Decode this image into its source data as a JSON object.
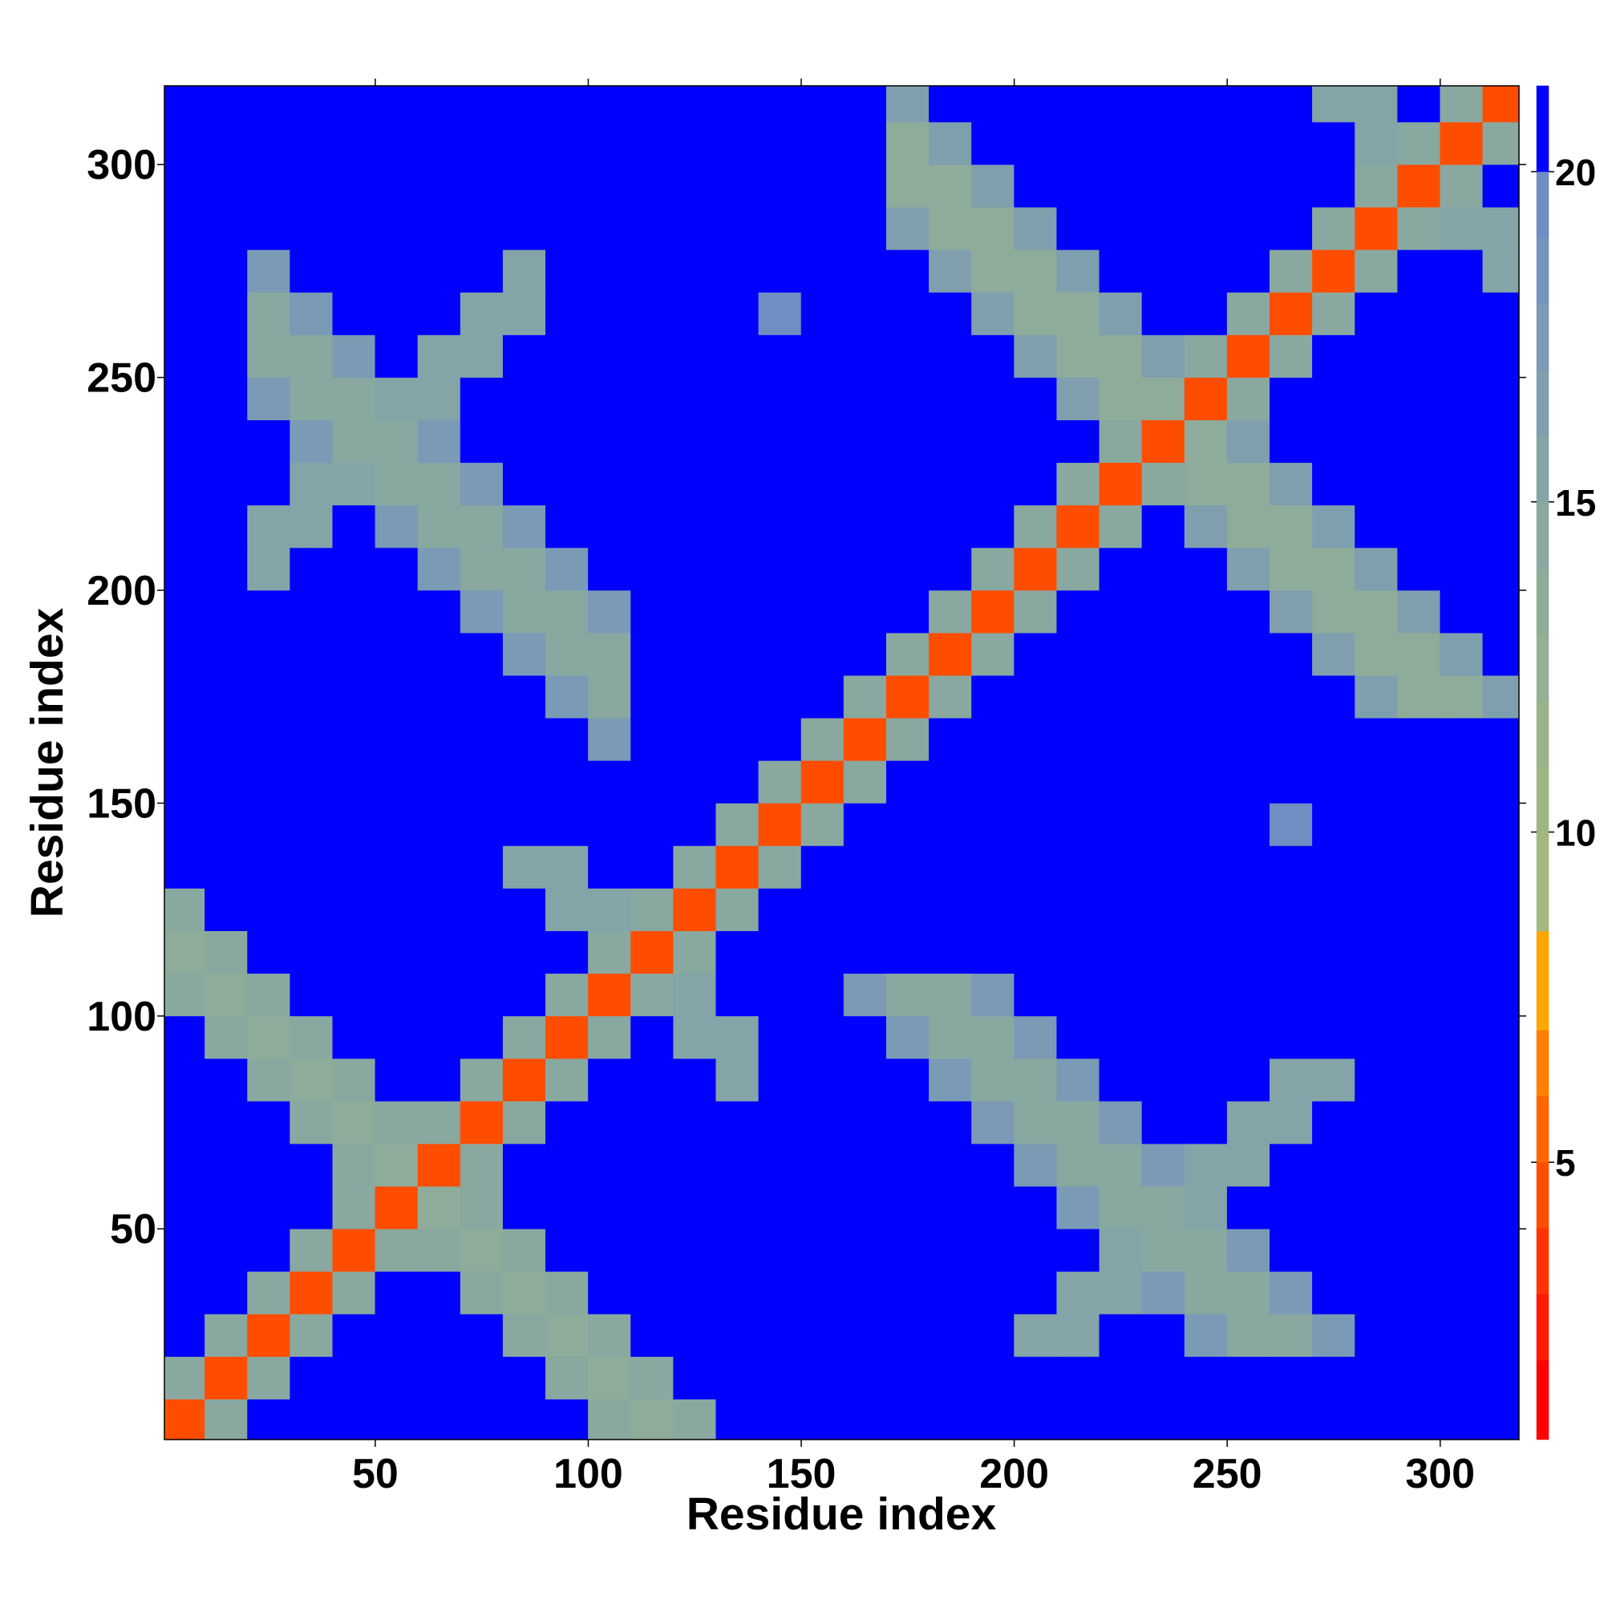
{
  "chart_data": {
    "type": "heatmap",
    "xlabel": "Residue index",
    "ylabel": "Residue index",
    "xlim": [
      0.5,
      318.5
    ],
    "ylim": [
      0.5,
      318.5
    ],
    "xticks": [
      50,
      100,
      150,
      200,
      250,
      300
    ],
    "yticks": [
      50,
      100,
      150,
      200,
      250,
      300
    ],
    "x": [
      5,
      15,
      25,
      35,
      45,
      55,
      65,
      75,
      85,
      95,
      105,
      115,
      125,
      135,
      145,
      155,
      165,
      175,
      185,
      195,
      205,
      215,
      225,
      235,
      245,
      255,
      265,
      275,
      285,
      295,
      305,
      315
    ],
    "y": [
      5,
      15,
      25,
      35,
      45,
      55,
      65,
      75,
      85,
      95,
      105,
      115,
      125,
      135,
      145,
      155,
      165,
      175,
      185,
      195,
      205,
      215,
      225,
      235,
      245,
      255,
      265,
      275,
      285,
      295,
      305,
      315
    ],
    "z": [
      [
        4,
        14,
        21,
        21,
        21,
        21,
        21,
        21,
        21,
        21,
        14,
        13,
        14,
        21,
        21,
        21,
        21,
        21,
        21,
        21,
        21,
        21,
        21,
        21,
        21,
        21,
        21,
        21,
        21,
        21,
        21,
        21
      ],
      [
        14,
        4,
        14,
        21,
        21,
        21,
        21,
        21,
        21,
        14,
        13,
        14,
        21,
        21,
        21,
        21,
        21,
        21,
        21,
        21,
        21,
        21,
        21,
        21,
        21,
        21,
        21,
        21,
        21,
        21,
        21,
        21
      ],
      [
        21,
        14,
        4,
        14,
        21,
        21,
        21,
        21,
        14,
        13,
        14,
        21,
        21,
        21,
        21,
        21,
        21,
        21,
        21,
        21,
        15,
        15,
        21,
        21,
        17,
        14,
        14,
        17,
        21,
        21,
        21,
        21
      ],
      [
        21,
        21,
        14,
        4,
        14,
        21,
        21,
        14,
        13,
        14,
        21,
        21,
        21,
        21,
        21,
        21,
        21,
        21,
        21,
        21,
        21,
        15,
        15,
        17,
        14,
        14,
        17,
        21,
        21,
        21,
        21,
        21
      ],
      [
        21,
        21,
        21,
        14,
        4,
        14,
        14,
        13,
        14,
        21,
        21,
        21,
        21,
        21,
        21,
        21,
        21,
        21,
        21,
        21,
        21,
        21,
        15,
        14,
        14,
        17,
        21,
        21,
        21,
        21,
        21,
        21
      ],
      [
        21,
        21,
        21,
        21,
        14,
        4,
        13,
        14,
        21,
        21,
        21,
        21,
        21,
        21,
        21,
        21,
        21,
        21,
        21,
        21,
        21,
        17,
        14,
        14,
        15,
        21,
        21,
        21,
        21,
        21,
        21,
        21
      ],
      [
        21,
        21,
        21,
        21,
        14,
        13,
        4,
        14,
        21,
        21,
        21,
        21,
        21,
        21,
        21,
        21,
        21,
        21,
        21,
        21,
        17,
        14,
        14,
        17,
        15,
        15,
        21,
        21,
        21,
        21,
        21,
        21
      ],
      [
        21,
        21,
        21,
        14,
        13,
        14,
        14,
        4,
        14,
        21,
        21,
        21,
        21,
        21,
        21,
        21,
        21,
        21,
        21,
        17,
        14,
        14,
        17,
        21,
        21,
        15,
        15,
        21,
        21,
        21,
        21,
        21
      ],
      [
        21,
        21,
        14,
        13,
        14,
        21,
        21,
        14,
        4,
        14,
        21,
        21,
        21,
        15,
        21,
        21,
        21,
        21,
        17,
        14,
        14,
        17,
        21,
        21,
        21,
        21,
        15,
        15,
        21,
        21,
        21,
        21
      ],
      [
        21,
        14,
        13,
        14,
        21,
        21,
        21,
        21,
        14,
        4,
        14,
        21,
        15,
        15,
        21,
        21,
        21,
        17,
        14,
        14,
        17,
        21,
        21,
        21,
        21,
        21,
        21,
        21,
        21,
        21,
        21,
        21
      ],
      [
        14,
        13,
        14,
        21,
        21,
        21,
        21,
        21,
        21,
        14,
        4,
        14,
        15,
        21,
        21,
        21,
        17,
        14,
        14,
        17,
        21,
        21,
        21,
        21,
        21,
        21,
        21,
        21,
        21,
        21,
        21,
        21
      ],
      [
        13,
        14,
        21,
        21,
        21,
        21,
        21,
        21,
        21,
        21,
        14,
        4,
        14,
        21,
        21,
        21,
        21,
        21,
        21,
        21,
        21,
        21,
        21,
        21,
        21,
        21,
        21,
        21,
        21,
        21,
        21,
        21
      ],
      [
        14,
        21,
        21,
        21,
        21,
        21,
        21,
        21,
        21,
        15,
        15,
        14,
        4,
        14,
        21,
        21,
        21,
        21,
        21,
        21,
        21,
        21,
        21,
        21,
        21,
        21,
        21,
        21,
        21,
        21,
        21,
        21
      ],
      [
        21,
        21,
        21,
        21,
        21,
        21,
        21,
        21,
        15,
        15,
        21,
        21,
        14,
        4,
        14,
        21,
        21,
        21,
        21,
        21,
        21,
        21,
        21,
        21,
        21,
        21,
        21,
        21,
        21,
        21,
        21,
        21
      ],
      [
        21,
        21,
        21,
        21,
        21,
        21,
        21,
        21,
        21,
        21,
        21,
        21,
        21,
        14,
        4,
        14,
        21,
        21,
        21,
        21,
        21,
        21,
        21,
        21,
        21,
        21,
        19,
        21,
        21,
        21,
        21,
        21
      ],
      [
        21,
        21,
        21,
        21,
        21,
        21,
        21,
        21,
        21,
        21,
        21,
        21,
        21,
        21,
        14,
        4,
        14,
        21,
        21,
        21,
        21,
        21,
        21,
        21,
        21,
        21,
        21,
        21,
        21,
        21,
        21,
        21
      ],
      [
        21,
        21,
        21,
        21,
        21,
        21,
        21,
        21,
        21,
        21,
        17,
        21,
        21,
        21,
        21,
        14,
        4,
        14,
        21,
        21,
        21,
        21,
        21,
        21,
        21,
        21,
        21,
        21,
        21,
        21,
        21,
        21
      ],
      [
        21,
        21,
        21,
        21,
        21,
        21,
        21,
        21,
        21,
        17,
        14,
        21,
        21,
        21,
        21,
        21,
        14,
        4,
        14,
        21,
        21,
        21,
        21,
        21,
        21,
        21,
        21,
        21,
        16,
        13,
        13,
        16
      ],
      [
        21,
        21,
        21,
        21,
        21,
        21,
        21,
        21,
        17,
        14,
        14,
        21,
        21,
        21,
        21,
        21,
        21,
        14,
        4,
        14,
        21,
        21,
        21,
        21,
        21,
        21,
        21,
        16,
        13,
        13,
        16,
        21
      ],
      [
        21,
        21,
        21,
        21,
        21,
        21,
        21,
        17,
        14,
        14,
        17,
        21,
        21,
        21,
        21,
        21,
        21,
        21,
        14,
        4,
        14,
        21,
        21,
        21,
        21,
        21,
        16,
        13,
        13,
        16,
        21,
        21
      ],
      [
        21,
        21,
        15,
        21,
        21,
        21,
        17,
        14,
        14,
        17,
        21,
        21,
        21,
        21,
        21,
        21,
        21,
        21,
        21,
        14,
        4,
        14,
        21,
        21,
        21,
        16,
        13,
        13,
        16,
        21,
        21,
        21
      ],
      [
        21,
        21,
        15,
        15,
        21,
        17,
        14,
        14,
        17,
        21,
        21,
        21,
        21,
        21,
        21,
        21,
        21,
        21,
        21,
        21,
        14,
        4,
        14,
        21,
        16,
        13,
        13,
        16,
        21,
        21,
        21,
        21
      ],
      [
        21,
        21,
        21,
        15,
        15,
        14,
        14,
        17,
        21,
        21,
        21,
        21,
        21,
        21,
        21,
        21,
        21,
        21,
        21,
        21,
        21,
        14,
        4,
        14,
        13,
        13,
        16,
        21,
        21,
        21,
        21,
        21
      ],
      [
        21,
        21,
        21,
        17,
        14,
        14,
        17,
        21,
        21,
        21,
        21,
        21,
        21,
        21,
        21,
        21,
        21,
        21,
        21,
        21,
        21,
        21,
        14,
        4,
        13,
        16,
        21,
        21,
        21,
        21,
        21,
        21
      ],
      [
        21,
        21,
        17,
        14,
        14,
        15,
        15,
        21,
        21,
        21,
        21,
        21,
        21,
        21,
        21,
        21,
        21,
        21,
        21,
        21,
        21,
        16,
        13,
        13,
        4,
        14,
        21,
        21,
        21,
        21,
        21,
        21
      ],
      [
        21,
        21,
        14,
        14,
        17,
        21,
        15,
        15,
        21,
        21,
        21,
        21,
        21,
        21,
        21,
        21,
        21,
        21,
        21,
        21,
        16,
        13,
        13,
        16,
        14,
        4,
        14,
        21,
        21,
        21,
        21,
        21
      ],
      [
        21,
        21,
        14,
        17,
        21,
        21,
        21,
        15,
        15,
        21,
        21,
        21,
        21,
        21,
        19,
        21,
        21,
        21,
        21,
        16,
        13,
        13,
        16,
        21,
        21,
        14,
        4,
        14,
        21,
        21,
        21,
        21
      ],
      [
        21,
        21,
        17,
        21,
        21,
        21,
        21,
        21,
        15,
        21,
        21,
        21,
        21,
        21,
        21,
        21,
        21,
        21,
        16,
        13,
        13,
        16,
        21,
        21,
        21,
        21,
        14,
        4,
        14,
        21,
        21,
        15
      ],
      [
        21,
        21,
        21,
        21,
        21,
        21,
        21,
        21,
        21,
        21,
        21,
        21,
        21,
        21,
        21,
        21,
        21,
        16,
        13,
        13,
        16,
        21,
        21,
        21,
        21,
        21,
        21,
        14,
        4,
        14,
        15,
        15
      ],
      [
        21,
        21,
        21,
        21,
        21,
        21,
        21,
        21,
        21,
        21,
        21,
        21,
        21,
        21,
        21,
        21,
        21,
        13,
        13,
        16,
        21,
        21,
        21,
        21,
        21,
        21,
        21,
        21,
        14,
        4,
        14,
        21
      ],
      [
        21,
        21,
        21,
        21,
        21,
        21,
        21,
        21,
        21,
        21,
        21,
        21,
        21,
        21,
        21,
        21,
        21,
        13,
        16,
        21,
        21,
        21,
        21,
        21,
        21,
        21,
        21,
        21,
        15,
        14,
        4,
        14
      ],
      [
        21,
        21,
        21,
        21,
        21,
        21,
        21,
        21,
        21,
        21,
        21,
        21,
        21,
        21,
        21,
        21,
        21,
        16,
        21,
        21,
        21,
        21,
        21,
        21,
        21,
        21,
        21,
        15,
        15,
        21,
        14,
        4
      ]
    ],
    "colorbar": {
      "bounds": [
        0.8,
        2,
        3,
        4,
        5,
        6,
        7,
        8.5,
        10,
        11,
        12,
        13,
        14,
        15,
        16,
        17,
        18,
        19,
        20,
        21.3
      ],
      "colors": [
        "#ff0000",
        "#ff1a00",
        "#ff3300",
        "#ff4d00",
        "#ff6600",
        "#ff8000",
        "#ffa500",
        "#a3b87e",
        "#9db684",
        "#98b38b",
        "#93b092",
        "#8eac99",
        "#89a8a0",
        "#84a4a8",
        "#7f9faf",
        "#7a9ab6",
        "#7594bc",
        "#6f8ec2",
        "#0000ff"
      ],
      "ticks": [
        5,
        10,
        15,
        20
      ]
    }
  }
}
